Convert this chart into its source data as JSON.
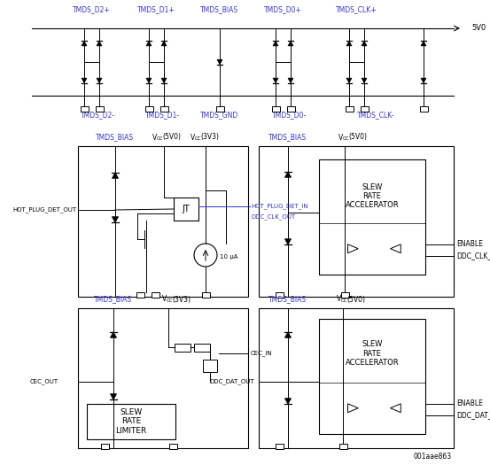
{
  "bg_color": "#ffffff",
  "line_color": "#000000",
  "blue_color": "#3333cc",
  "text_color": "#000000",
  "watermark": "001aae863",
  "top_labels_plus": [
    "TMDS_D2+",
    "TMDS_D1+",
    "TMDS_BIAS",
    "TMDS_D0+",
    "TMDS_CLK+"
  ],
  "top_labels_minus": [
    "TMDS_D2-",
    "TMDS_D1-",
    "TMDS_GND",
    "TMDS_D0-",
    "TMDS_CLK-"
  ],
  "mid_left_labels_top": [
    "TMDS_BIAS",
    "VCC(5V0)",
    "VCC(3V3)"
  ],
  "mid_right_labels_top": [
    "TMDS_BIAS",
    "VCC(5V0)"
  ],
  "bot_left_labels_top": [
    "TMDS_BIAS",
    "VCC(3V3)"
  ],
  "bot_right_labels_top": [
    "TMDS_BIAS",
    "VCC(5V0)"
  ],
  "hot_plug_det_out": "HOT_PLUG_DET_OUT",
  "hot_plug_det_in": "HOT_PLUG_DET_IN",
  "ddc_clk_out": "DDC_CLK_OUT",
  "enable": "ENABLE",
  "ddc_clk_in": "DDC_CLK_IN",
  "cec_out": "CEC_OUT",
  "cec_in": "CEC_IN",
  "ddc_dat_out": "DDC_DAT_OUT",
  "ddc_dat_in": "DDC_DAT_IN",
  "enable2": "ENABLE",
  "slew_rate_accelerator": "SLEW\nRATE\nACCELERATOR",
  "slew_rate_limiter": "SLEW\nRATE\nLIMITER",
  "current_label": "10 μA",
  "v5v0": "5V0",
  "vcc_5v0_sub": "(5V0)",
  "vcc_3v3_sub": "(3V3)",
  "vcc_prefix": "V",
  "vcc_cc": "CC"
}
